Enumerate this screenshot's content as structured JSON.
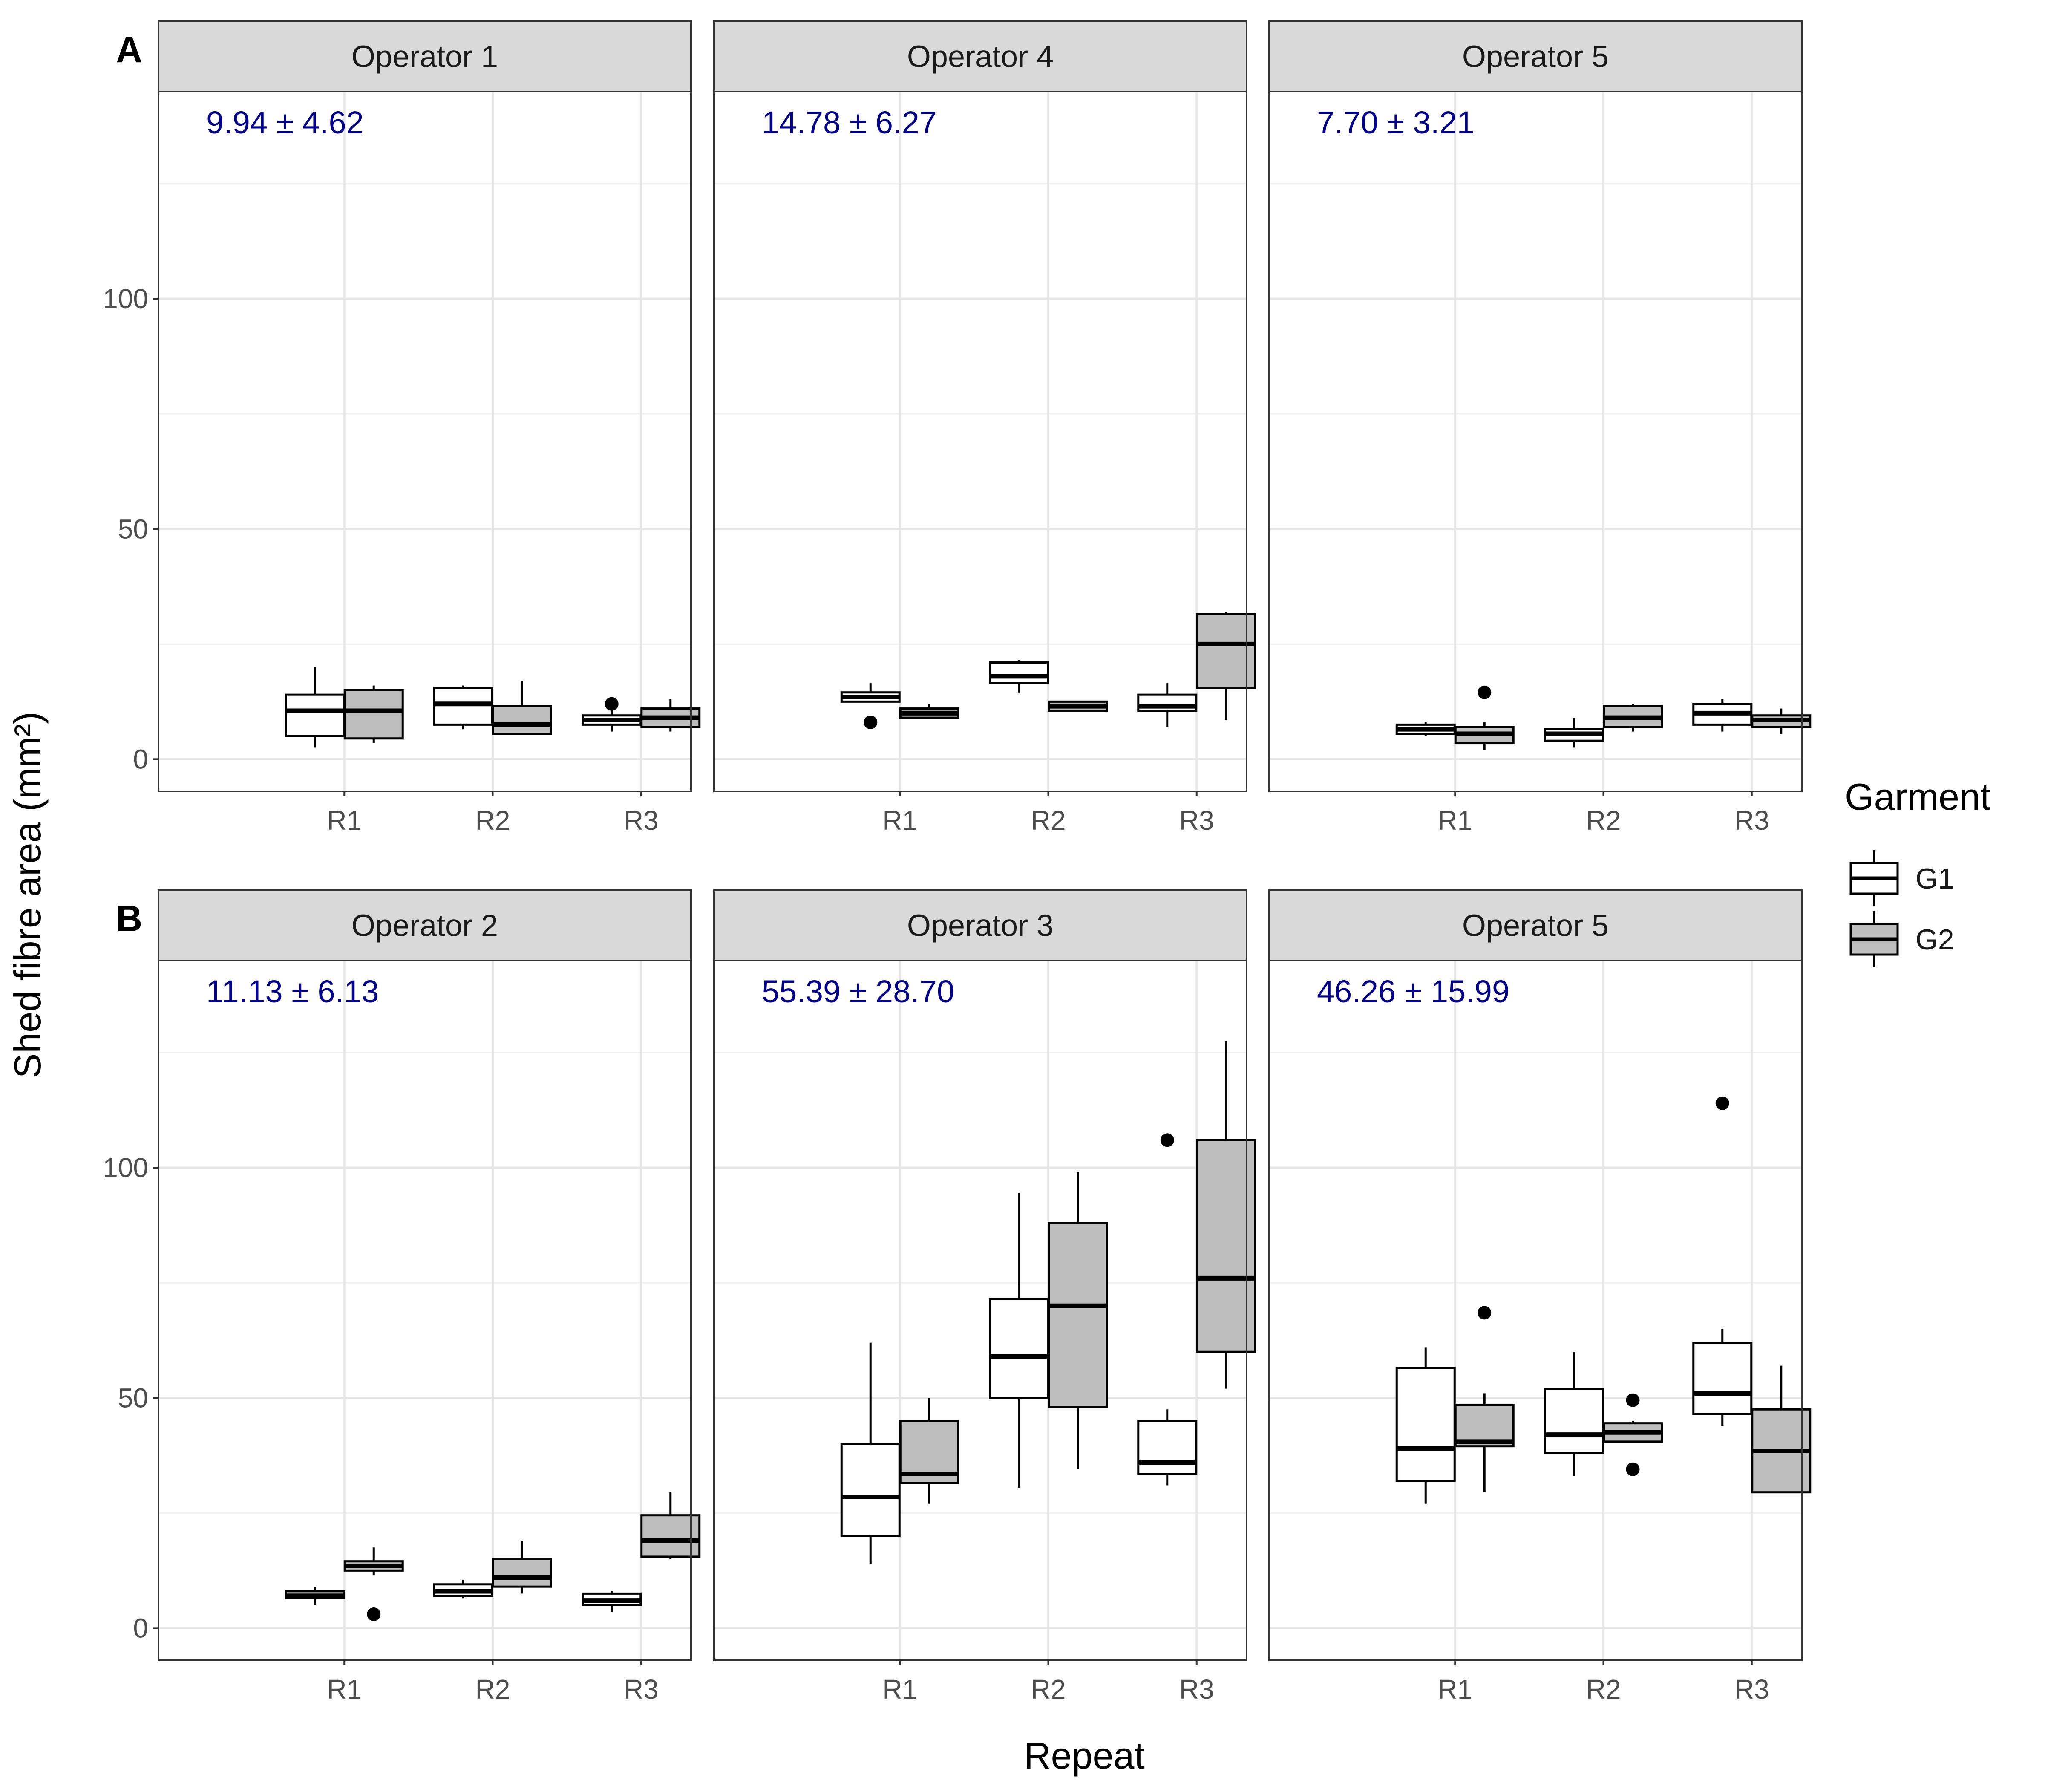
{
  "chart_data": {
    "type": "boxplot",
    "ylabel": "Shed fibre area (mm²)",
    "xlabel": "Repeat",
    "ylim": [
      -7,
      145
    ],
    "yticks": [
      0,
      50,
      100
    ],
    "categories": [
      "R1",
      "R2",
      "R3"
    ],
    "grid": true,
    "legend": {
      "title": "Garment",
      "placement": "right",
      "items": [
        {
          "name": "G1",
          "color": "#ffffff"
        },
        {
          "name": "G2",
          "color": "#bebebe"
        }
      ]
    },
    "panels": [
      {
        "tag": "A",
        "label": "Operator 1",
        "annotation": "9.94 ± 4.62",
        "boxes": [
          {
            "repeat": "R1",
            "garment": "G1",
            "min": 2.5,
            "q1": 5,
            "median": 10.5,
            "q3": 14,
            "max": 20,
            "outliers": []
          },
          {
            "repeat": "R1",
            "garment": "G2",
            "min": 3.5,
            "q1": 4.5,
            "median": 10.5,
            "q3": 15,
            "max": 16,
            "outliers": []
          },
          {
            "repeat": "R2",
            "garment": "G1",
            "min": 6.5,
            "q1": 7.5,
            "median": 12,
            "q3": 15.5,
            "max": 16,
            "outliers": []
          },
          {
            "repeat": "R2",
            "garment": "G2",
            "min": 5.5,
            "q1": 5.5,
            "median": 7.5,
            "q3": 11.5,
            "max": 17,
            "outliers": []
          },
          {
            "repeat": "R3",
            "garment": "G1",
            "min": 6,
            "q1": 7.5,
            "median": 8.5,
            "q3": 9.5,
            "max": 11,
            "outliers": [
              12
            ]
          },
          {
            "repeat": "R3",
            "garment": "G2",
            "min": 6,
            "q1": 7,
            "median": 9,
            "q3": 11,
            "max": 13,
            "outliers": []
          }
        ]
      },
      {
        "tag": "",
        "label": "Operator 4",
        "annotation": "14.78 ± 6.27",
        "boxes": [
          {
            "repeat": "R1",
            "garment": "G1",
            "min": 12.5,
            "q1": 12.5,
            "median": 13.5,
            "q3": 14.5,
            "max": 16.5,
            "outliers": [
              8
            ]
          },
          {
            "repeat": "R1",
            "garment": "G2",
            "min": 9,
            "q1": 9,
            "median": 10,
            "q3": 11,
            "max": 12,
            "outliers": []
          },
          {
            "repeat": "R2",
            "garment": "G1",
            "min": 14.5,
            "q1": 16.5,
            "median": 18,
            "q3": 21,
            "max": 21.5,
            "outliers": []
          },
          {
            "repeat": "R2",
            "garment": "G2",
            "min": 10.5,
            "q1": 10.5,
            "median": 11.5,
            "q3": 12.5,
            "max": 12.5,
            "outliers": []
          },
          {
            "repeat": "R3",
            "garment": "G1",
            "min": 7,
            "q1": 10.5,
            "median": 11.5,
            "q3": 14,
            "max": 16.5,
            "outliers": []
          },
          {
            "repeat": "R3",
            "garment": "G2",
            "min": 8.5,
            "q1": 15.5,
            "median": 25,
            "q3": 31.5,
            "max": 32,
            "outliers": []
          }
        ]
      },
      {
        "tag": "",
        "label": "Operator 5",
        "annotation": "7.70 ± 3.21",
        "boxes": [
          {
            "repeat": "R1",
            "garment": "G1",
            "min": 5,
            "q1": 5.5,
            "median": 6.5,
            "q3": 7.5,
            "max": 8,
            "outliers": []
          },
          {
            "repeat": "R1",
            "garment": "G2",
            "min": 2,
            "q1": 3.5,
            "median": 5.5,
            "q3": 7,
            "max": 8,
            "outliers": [
              14.5
            ]
          },
          {
            "repeat": "R2",
            "garment": "G1",
            "min": 2.5,
            "q1": 4,
            "median": 5.5,
            "q3": 6.5,
            "max": 9,
            "outliers": []
          },
          {
            "repeat": "R2",
            "garment": "G2",
            "min": 6,
            "q1": 7,
            "median": 9,
            "q3": 11.5,
            "max": 12,
            "outliers": []
          },
          {
            "repeat": "R3",
            "garment": "G1",
            "min": 6,
            "q1": 7.5,
            "median": 10,
            "q3": 12,
            "max": 13,
            "outliers": []
          },
          {
            "repeat": "R3",
            "garment": "G2",
            "min": 5.5,
            "q1": 7,
            "median": 8.5,
            "q3": 9.5,
            "max": 11,
            "outliers": []
          }
        ]
      },
      {
        "tag": "B",
        "label": "Operator 2",
        "annotation": "11.13 ± 6.13",
        "boxes": [
          {
            "repeat": "R1",
            "garment": "G1",
            "min": 5,
            "q1": 6.5,
            "median": 7,
            "q3": 8,
            "max": 9,
            "outliers": []
          },
          {
            "repeat": "R1",
            "garment": "G2",
            "min": 11.5,
            "q1": 12.5,
            "median": 13.5,
            "q3": 14.5,
            "max": 17.5,
            "outliers": [
              3
            ]
          },
          {
            "repeat": "R2",
            "garment": "G1",
            "min": 6.5,
            "q1": 7,
            "median": 8,
            "q3": 9.5,
            "max": 10.5,
            "outliers": []
          },
          {
            "repeat": "R2",
            "garment": "G2",
            "min": 7.5,
            "q1": 9,
            "median": 11,
            "q3": 15,
            "max": 19,
            "outliers": []
          },
          {
            "repeat": "R3",
            "garment": "G1",
            "min": 3.5,
            "q1": 5,
            "median": 6,
            "q3": 7.5,
            "max": 8,
            "outliers": []
          },
          {
            "repeat": "R3",
            "garment": "G2",
            "min": 15,
            "q1": 15.5,
            "median": 19,
            "q3": 24.5,
            "max": 29.5,
            "outliers": []
          }
        ]
      },
      {
        "tag": "",
        "label": "Operator 3",
        "annotation": "55.39 ± 28.70",
        "boxes": [
          {
            "repeat": "R1",
            "garment": "G1",
            "min": 14,
            "q1": 20,
            "median": 28.5,
            "q3": 40,
            "max": 62,
            "outliers": []
          },
          {
            "repeat": "R1",
            "garment": "G2",
            "min": 27,
            "q1": 31.5,
            "median": 33.5,
            "q3": 45,
            "max": 50,
            "outliers": []
          },
          {
            "repeat": "R2",
            "garment": "G1",
            "min": 30.5,
            "q1": 50,
            "median": 59,
            "q3": 71.5,
            "max": 94.5,
            "outliers": []
          },
          {
            "repeat": "R2",
            "garment": "G2",
            "min": 34.5,
            "q1": 48,
            "median": 70,
            "q3": 88,
            "max": 99,
            "outliers": []
          },
          {
            "repeat": "R3",
            "garment": "G1",
            "min": 31,
            "q1": 33.5,
            "median": 36,
            "q3": 45,
            "max": 47.5,
            "outliers": [
              106
            ]
          },
          {
            "repeat": "R3",
            "garment": "G2",
            "min": 52,
            "q1": 60,
            "median": 76,
            "q3": 106,
            "max": 127.5,
            "outliers": []
          }
        ]
      },
      {
        "tag": "",
        "label": "Operator 5",
        "annotation": "46.26 ± 15.99",
        "boxes": [
          {
            "repeat": "R1",
            "garment": "G1",
            "min": 27,
            "q1": 32,
            "median": 39,
            "q3": 56.5,
            "max": 61,
            "outliers": []
          },
          {
            "repeat": "R1",
            "garment": "G2",
            "min": 29.5,
            "q1": 39.5,
            "median": 40.5,
            "q3": 48.5,
            "max": 51,
            "outliers": [
              68.5
            ]
          },
          {
            "repeat": "R2",
            "garment": "G1",
            "min": 33,
            "q1": 38,
            "median": 42,
            "q3": 52,
            "max": 60,
            "outliers": []
          },
          {
            "repeat": "R2",
            "garment": "G2",
            "min": 40.5,
            "q1": 40.5,
            "median": 42.5,
            "q3": 44.5,
            "max": 45,
            "outliers": [
              49.5,
              34.5
            ]
          },
          {
            "repeat": "R3",
            "garment": "G1",
            "min": 44,
            "q1": 46.5,
            "median": 51,
            "q3": 62,
            "max": 65,
            "outliers": [
              114
            ]
          },
          {
            "repeat": "R3",
            "garment": "G2",
            "min": 29.5,
            "q1": 29.5,
            "median": 38.5,
            "q3": 47.5,
            "max": 57,
            "outliers": []
          }
        ]
      }
    ]
  }
}
